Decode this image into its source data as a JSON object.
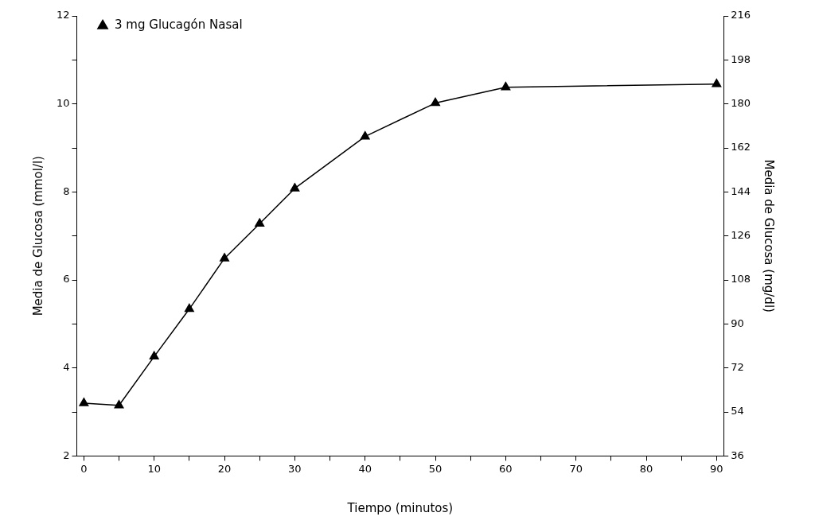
{
  "chart_data": {
    "type": "line",
    "xlabel": "Tiempo (minutos)",
    "ylabel": "Media de Glucosa (mmol/l)",
    "y2label": "Media de Glucosa (mg/dl)",
    "x": [
      0,
      5,
      10,
      15,
      20,
      25,
      30,
      40,
      50,
      60,
      90
    ],
    "series": [
      {
        "name": "3 mg Glucagón Nasal",
        "color": "#000000",
        "values": [
          3.2,
          3.15,
          4.26,
          5.34,
          6.49,
          7.28,
          8.08,
          9.26,
          10.02,
          10.38,
          10.45
        ]
      }
    ],
    "xlim": [
      -1,
      91
    ],
    "xticks": [
      0,
      {
        "value": 5,
        "label": null
      },
      10,
      {
        "value": 15,
        "label": null
      },
      20,
      {
        "value": 25,
        "label": null
      },
      30,
      {
        "value": 35,
        "label": null
      },
      40,
      {
        "value": 45,
        "label": null
      },
      50,
      {
        "value": 55,
        "label": null
      },
      60,
      {
        "value": 65,
        "label": null
      },
      70,
      {
        "value": 75,
        "label": null
      },
      80,
      {
        "value": 85,
        "label": null
      },
      90
    ],
    "ylim": [
      2,
      12
    ],
    "yticks": [
      2,
      {
        "value": 3,
        "label": null
      },
      4,
      {
        "value": 5,
        "label": null
      },
      6,
      {
        "value": 7,
        "label": null
      },
      8,
      {
        "value": 9,
        "label": null
      },
      10,
      {
        "value": 11,
        "label": null
      },
      12
    ],
    "y2lim": [
      36,
      216
    ],
    "y2ticks": [
      36,
      54,
      72,
      90,
      108,
      126,
      144,
      162,
      180,
      198,
      216
    ],
    "grid": false,
    "legend": "top left",
    "marker": "triangle",
    "line_style": "solid"
  }
}
